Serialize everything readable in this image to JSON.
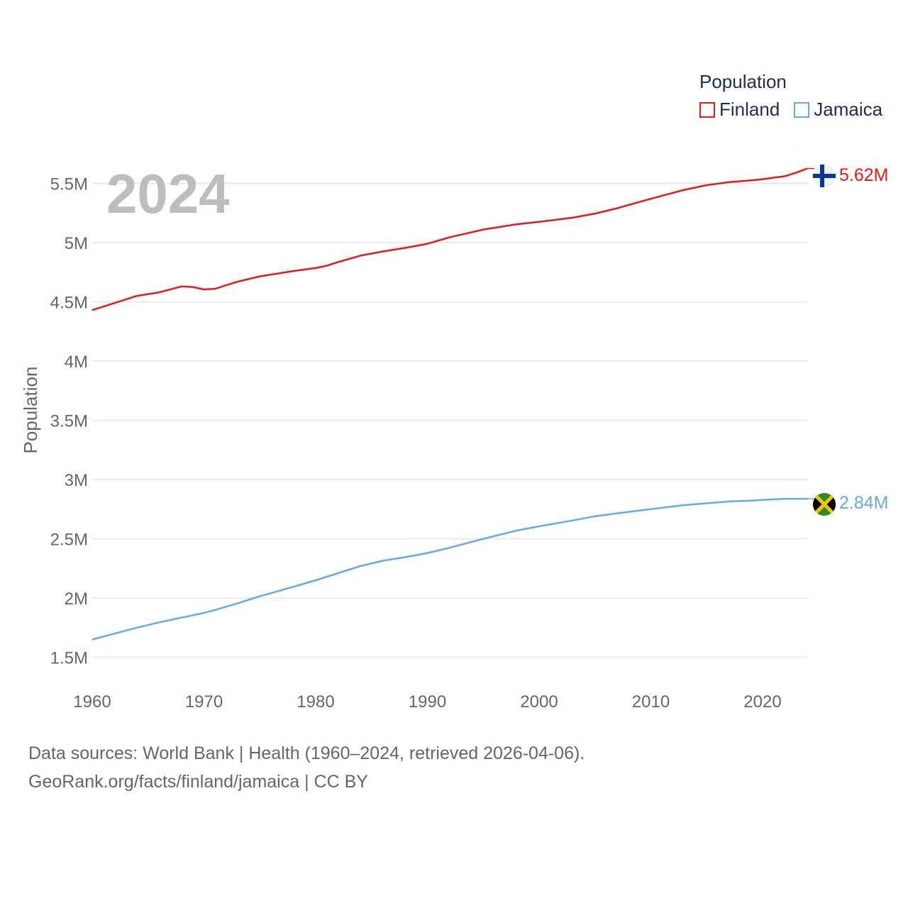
{
  "chart_data": {
    "type": "line",
    "title": "Population",
    "ylabel": "Population",
    "xlabel": "",
    "year_label": "2024",
    "xlim": [
      1960,
      2024
    ],
    "ylim": [
      1300000,
      5850000
    ],
    "x_ticks": [
      1960,
      1970,
      1980,
      1990,
      2000,
      2010,
      2020
    ],
    "x_tick_labels": [
      "1960",
      "1970",
      "1980",
      "1990",
      "2000",
      "2010",
      "2020"
    ],
    "y_ticks": [
      1500000,
      2000000,
      2500000,
      3000000,
      3500000,
      4000000,
      4500000,
      5000000,
      5500000
    ],
    "y_tick_labels": [
      "1.5M",
      "2M",
      "2.5M",
      "3M",
      "3.5M",
      "4M",
      "4.5M",
      "5M",
      "5.5M"
    ],
    "x": [
      1960,
      1962,
      1964,
      1966,
      1968,
      1969,
      1970,
      1971,
      1973,
      1975,
      1978,
      1980,
      1981,
      1982,
      1984,
      1986,
      1988,
      1990,
      1992,
      1995,
      1998,
      2000,
      2003,
      2005,
      2007,
      2010,
      2013,
      2015,
      2017,
      2019,
      2020,
      2022,
      2023,
      2024
    ],
    "series": [
      {
        "name": "Finland",
        "color": "#e31a1c",
        "end_label": "5.62M",
        "values": [
          4430000,
          4490000,
          4550000,
          4580000,
          4630000,
          4625000,
          4605000,
          4610000,
          4670000,
          4715000,
          4760000,
          4785000,
          4805000,
          4835000,
          4890000,
          4925000,
          4955000,
          4990000,
          5045000,
          5110000,
          5155000,
          5175000,
          5210000,
          5245000,
          5290000,
          5370000,
          5445000,
          5485000,
          5510000,
          5525000,
          5535000,
          5560000,
          5590000,
          5625000
        ]
      },
      {
        "name": "Jamaica",
        "color": "#67a9e6",
        "end_label": "2.84M",
        "values": [
          1650000,
          1700000,
          1750000,
          1795000,
          1835000,
          1855000,
          1875000,
          1900000,
          1955000,
          2015000,
          2095000,
          2150000,
          2180000,
          2210000,
          2270000,
          2315000,
          2345000,
          2380000,
          2425000,
          2500000,
          2570000,
          2605000,
          2655000,
          2690000,
          2715000,
          2750000,
          2785000,
          2800000,
          2815000,
          2822000,
          2828000,
          2838000,
          2838000,
          2838000
        ]
      }
    ],
    "legend_position": "top-right"
  },
  "legend": {
    "title": "Population",
    "items": [
      {
        "label": "Finland",
        "color": "#e31a1c"
      },
      {
        "label": "Jamaica",
        "color": "#67a9e6"
      }
    ]
  },
  "footer": {
    "line1": "Data sources: World Bank | Health (1960–2024, retrieved 2026-04-06).",
    "line2": "GeoRank.org/facts/finland/jamaica | CC BY"
  }
}
